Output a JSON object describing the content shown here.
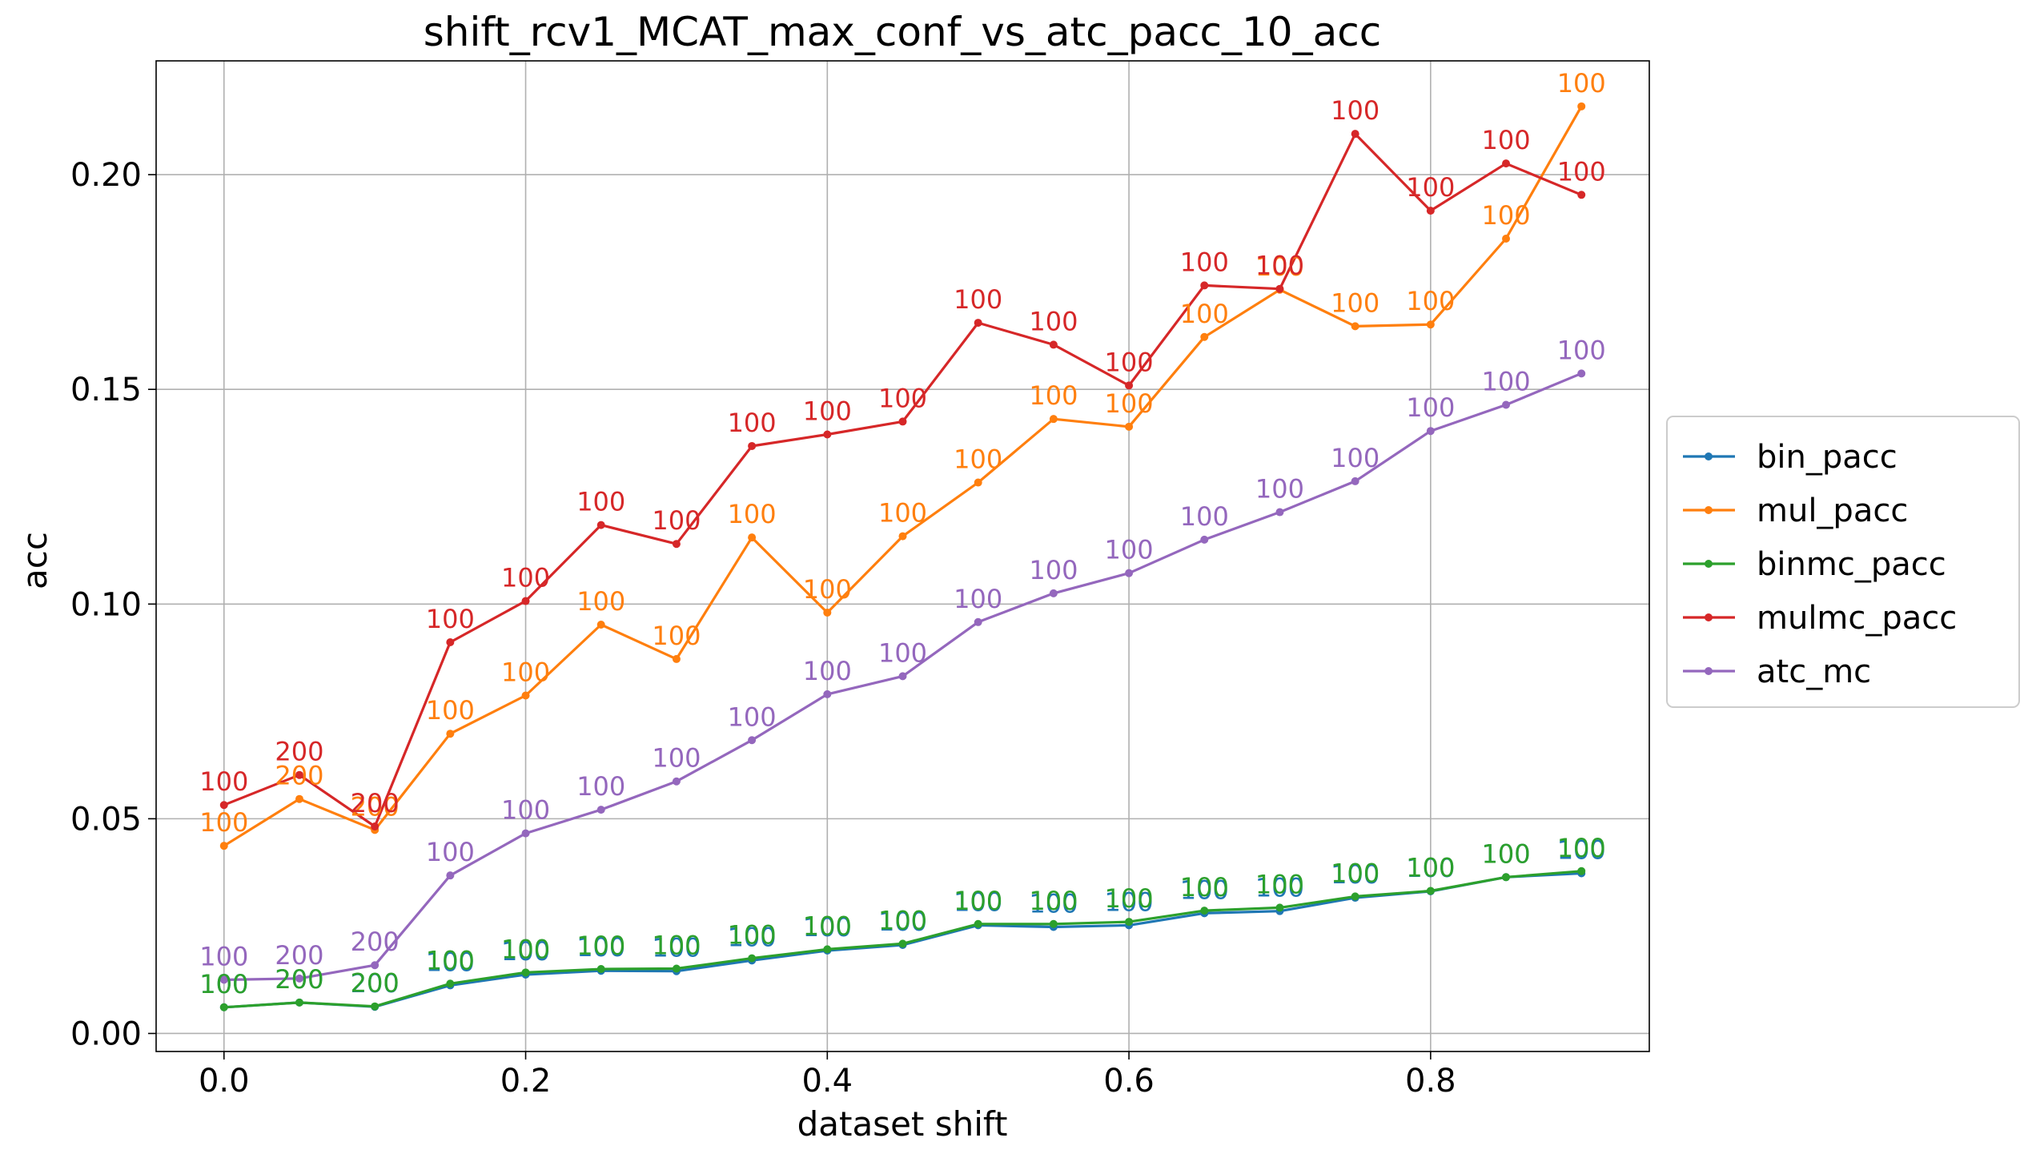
{
  "chart_data": {
    "type": "line",
    "title": "shift_rcv1_MCAT_max_conf_vs_atc_pacc_10_acc",
    "xlabel": "dataset shift",
    "ylabel": "acc",
    "xlim": [
      -0.045,
      0.945
    ],
    "ylim": [
      -0.0042,
      0.2265
    ],
    "xticks": [
      0.0,
      0.2,
      0.4,
      0.6,
      0.8
    ],
    "xtick_labels": [
      "0.0",
      "0.2",
      "0.4",
      "0.6",
      "0.8"
    ],
    "yticks": [
      0.0,
      0.05,
      0.1,
      0.15,
      0.2
    ],
    "ytick_labels": [
      "0.00",
      "0.05",
      "0.10",
      "0.15",
      "0.20"
    ],
    "grid": true,
    "legend_position": "center-right-outside",
    "x": [
      0.0,
      0.05,
      0.1,
      0.15,
      0.2,
      0.25,
      0.3,
      0.35,
      0.4,
      0.45,
      0.5,
      0.55,
      0.6,
      0.65,
      0.7,
      0.75,
      0.8,
      0.85,
      0.9
    ],
    "series": [
      {
        "name": "bin_pacc",
        "color": "#1f77b4",
        "values": [
          0.0061,
          0.0072,
          0.0062,
          0.0112,
          0.0137,
          0.0146,
          0.0145,
          0.017,
          0.0193,
          0.0206,
          0.0252,
          0.0248,
          0.0252,
          0.028,
          0.0285,
          0.0316,
          0.0331,
          0.0364,
          0.0373
        ],
        "labels": [
          "100",
          "200",
          "200",
          "100",
          "100",
          "100",
          "100",
          "100",
          "100",
          "100",
          "100",
          "100",
          "100",
          "100",
          "100",
          "100",
          "100",
          "100",
          "100"
        ]
      },
      {
        "name": "mul_pacc",
        "color": "#ff7f0e",
        "values": [
          0.0437,
          0.0546,
          0.0474,
          0.0698,
          0.0787,
          0.0952,
          0.0872,
          0.1155,
          0.098,
          0.1158,
          0.1283,
          0.1431,
          0.1413,
          0.1622,
          0.1732,
          0.1647,
          0.1651,
          0.1851,
          0.2159
        ],
        "labels": [
          "100",
          "200",
          "200",
          "100",
          "100",
          "100",
          "100",
          "100",
          "100",
          "100",
          "100",
          "100",
          "100",
          "100",
          "100",
          "100",
          "100",
          "100",
          "100"
        ]
      },
      {
        "name": "binmc_pacc",
        "color": "#2ca02c",
        "values": [
          0.0061,
          0.0072,
          0.0063,
          0.0116,
          0.0142,
          0.015,
          0.0151,
          0.0175,
          0.0196,
          0.0209,
          0.0255,
          0.0255,
          0.026,
          0.0286,
          0.0293,
          0.0319,
          0.0332,
          0.0364,
          0.0378
        ],
        "labels": [
          "100",
          "200",
          "200",
          "100",
          "100",
          "100",
          "100",
          "100",
          "100",
          "100",
          "100",
          "100",
          "100",
          "100",
          "100",
          "100",
          "100",
          "100",
          "100"
        ]
      },
      {
        "name": "mulmc_pacc",
        "color": "#d62728",
        "values": [
          0.0532,
          0.0602,
          0.0482,
          0.0911,
          0.1007,
          0.1184,
          0.114,
          0.1368,
          0.1395,
          0.1425,
          0.1655,
          0.1604,
          0.1509,
          0.1742,
          0.1734,
          0.2095,
          0.1916,
          0.2026,
          0.1953
        ],
        "labels": [
          "100",
          "200",
          "200",
          "100",
          "100",
          "100",
          "100",
          "100",
          "100",
          "100",
          "100",
          "100",
          "100",
          "100",
          "100",
          "100",
          "100",
          "100",
          "100"
        ]
      },
      {
        "name": "atc_mc",
        "color": "#9467bd",
        "values": [
          0.0125,
          0.0128,
          0.0159,
          0.0368,
          0.0466,
          0.0521,
          0.0587,
          0.0683,
          0.079,
          0.0832,
          0.0958,
          0.1025,
          0.1072,
          0.115,
          0.1214,
          0.1286,
          0.1403,
          0.1464,
          0.1537
        ],
        "labels": [
          "100",
          "200",
          "200",
          "100",
          "100",
          "100",
          "100",
          "100",
          "100",
          "100",
          "100",
          "100",
          "100",
          "100",
          "100",
          "100",
          "100",
          "100",
          "100"
        ]
      }
    ]
  }
}
